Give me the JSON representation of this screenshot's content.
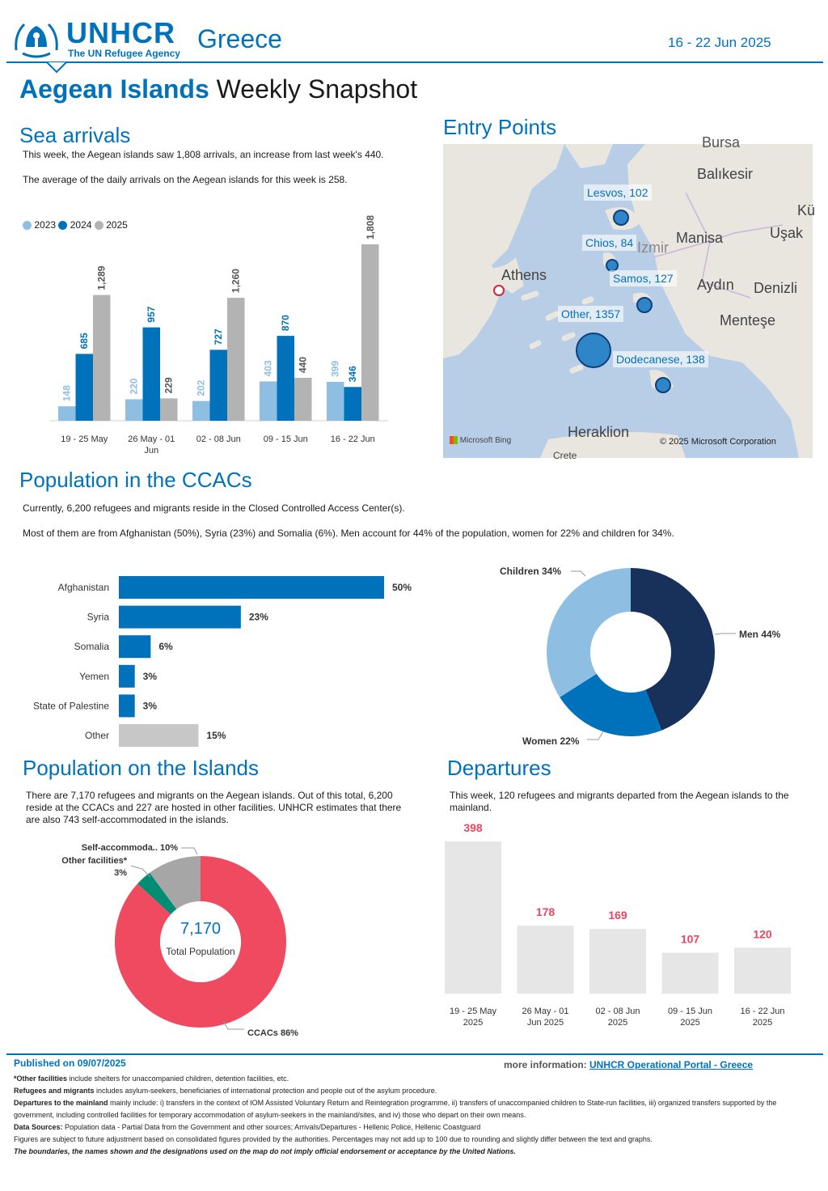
{
  "header": {
    "org": "UNHCR",
    "org_sub": "The UN Refugee Agency",
    "country": "Greece",
    "date_range": "16 - 22 Jun 2025",
    "title_bold": "Aegean Islands",
    "title_rest": " Weekly Snapshot",
    "colors": {
      "brand": "#0072bc",
      "dark": "#1b3a5c"
    }
  },
  "sea_arrivals": {
    "heading": "Sea arrivals",
    "text1": "This week, the Aegean islands saw 1,808 arrivals, an increase from last week's 440.",
    "text2": "The average of the daily arrivals on the Aegean islands for this week is 258.",
    "chart_data": {
      "type": "bar",
      "categories": [
        "19 - 25 May",
        "26 May - 01 Jun",
        "02 - 08 Jun",
        "09 - 15 Jun",
        "16 - 22 Jun"
      ],
      "series": [
        {
          "name": "2023",
          "color": "#8ebfe3",
          "values": [
            148,
            220,
            202,
            403,
            399
          ],
          "labels": [
            "148",
            "220",
            "202",
            "403",
            "399"
          ]
        },
        {
          "name": "2024",
          "color": "#0072bc",
          "values": [
            685,
            957,
            727,
            870,
            346
          ],
          "labels": [
            "685",
            "957",
            "727",
            "870",
            "346"
          ]
        },
        {
          "name": "2025",
          "color": "#b3b3b3",
          "values": [
            1289,
            229,
            1260,
            440,
            1808
          ],
          "labels": [
            "1,289",
            "229",
            "1,260",
            "440",
            "1,808"
          ]
        }
      ],
      "ylim": [
        0,
        1808
      ]
    }
  },
  "entry_points": {
    "heading": "Entry Points",
    "bubbles": [
      {
        "label": "Lesvos, 102",
        "value": 102
      },
      {
        "label": "Chios, 84",
        "value": 84
      },
      {
        "label": "Samos, 127",
        "value": 127
      },
      {
        "label": "Other, 1357",
        "value": 1357
      },
      {
        "label": "Dodecanese, 138",
        "value": 138
      }
    ],
    "places": [
      "Balıkesir",
      "Manisa",
      "Uşak",
      "Aydın",
      "Denizli",
      "Menteşe",
      "Athens",
      "Izmir",
      "Heraklion",
      "Crete",
      "Bursa",
      "Kü"
    ],
    "attribution_left": "Microsoft Bing",
    "attribution_right": "© 2025 Microsoft Corporation"
  },
  "ccac": {
    "heading": "Population in the CCACs",
    "text1": "Currently, 6,200 refugees and migrants reside in the Closed Controlled Access Center(s).",
    "text2": "Most of them are from Afghanistan (50%), Syria (23%) and Somalia (6%). Men account for 44% of the population, women for 22% and children for 34%.",
    "nationality_chart": {
      "type": "bar",
      "categories": [
        "Afghanistan",
        "Syria",
        "Somalia",
        "Yemen",
        "State of Palestine",
        "Other"
      ],
      "values": [
        50,
        23,
        6,
        3,
        3,
        15
      ],
      "labels": [
        "50%",
        "23%",
        "6%",
        "3%",
        "3%",
        "15%"
      ],
      "colors": [
        "#0072bc",
        "#0072bc",
        "#0072bc",
        "#0072bc",
        "#0072bc",
        "#c7c7c7"
      ]
    },
    "gender_chart": {
      "type": "pie",
      "categories": [
        "Men",
        "Women",
        "Children"
      ],
      "values": [
        44,
        22,
        34
      ],
      "labels": [
        "Men 44%",
        "Women 22%",
        "Children 34%"
      ],
      "colors": [
        "#18315a",
        "#0072bc",
        "#8ebfe3"
      ]
    }
  },
  "islands": {
    "heading": "Population on the Islands",
    "text": "There are 7,170 refugees and migrants on the Aegean islands. Out of this total, 6,200 reside at the CCACs and 227 are hosted in other facilities. UNHCR estimates that there are also 743 self-accommodated in the islands.",
    "chart_data": {
      "type": "pie",
      "categories": [
        "CCACs",
        "Other facilities*",
        "Self-accommoda.."
      ],
      "values": [
        86,
        3,
        10
      ],
      "labels": [
        "CCACs 86%",
        "Other facilities*",
        "Self-accommoda.. 10%"
      ],
      "colors": [
        "#ef4a60",
        "#008d73",
        "#a6a6a6"
      ],
      "center_value": "7,170",
      "center_label": "Total Population"
    },
    "other_pct": "3%"
  },
  "departures": {
    "heading": "Departures",
    "text": "This week, 120 refugees and migrants departed from the Aegean islands to the mainland.",
    "chart_data": {
      "type": "bar",
      "categories": [
        "19 - 25 May 2025",
        "26 May - 01 Jun 2025",
        "02 - 08 Jun 2025",
        "09 - 15 Jun 2025",
        "16 - 22 Jun 2025"
      ],
      "cat_lines": [
        [
          "19 - 25 May",
          "2025"
        ],
        [
          "26 May - 01",
          "Jun 2025"
        ],
        [
          "02 - 08 Jun",
          "2025"
        ],
        [
          "09 - 15 Jun",
          "2025"
        ],
        [
          "16 - 22 Jun",
          "2025"
        ]
      ],
      "values": [
        398,
        178,
        169,
        107,
        120
      ],
      "ylim": [
        0,
        398
      ],
      "bar_color": "#e6e6e6",
      "label_color": "#e8475f"
    }
  },
  "footer": {
    "published": "Published on 09/07/2025",
    "more_info_label": "more information:",
    "more_info_link": "UNHCR Operational Portal - Greece",
    "note1_bold": "*Other facilities",
    "note1": " include shelters for unaccompanied children, detention facilities, etc.",
    "note2_bold": "Refugees and migrants",
    "note2": " includes asylum-seekers, beneficiaries of international protection and people out of the asylum procedure.",
    "note3_bold": "Departures to the mainland",
    "note3": " mainly include: i) transfers in the context of IOM Assisted Voluntary Return and Reintegration programme, ii) transfers of unaccompanied children to State-run facilities, iii) organized transfers supported by the government, including controlled facilities for temporary accommodation of asylum-seekers in the mainland/sites, and iv) those who depart on their own means.",
    "note4_bold": "Data Sources:",
    "note4": " Population data - Partial Data from the Government and other sources; Arrivals/Departures - Hellenic Police, Hellenic Coastguard",
    "note5": "Figures are subject to future adjustment based on consolidated figures provided by the authorities. Percentages may not add up to 100 due to rounding and slightly differ between the text and graphs.",
    "note6": "The boundaries, the names shown and the designations used on the map do not imply official endorsement or acceptance by the United Nations."
  }
}
